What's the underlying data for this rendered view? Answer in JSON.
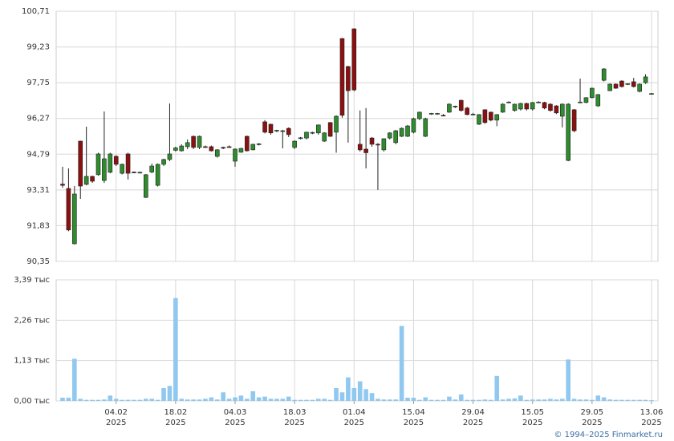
{
  "chart_data": {
    "type": "candlestick",
    "categories": [
      null,
      null,
      null,
      null,
      null,
      null,
      null,
      null,
      null,
      "04.02",
      null,
      null,
      null,
      null,
      null,
      null,
      null,
      null,
      null,
      "18.02",
      null,
      null,
      null,
      null,
      null,
      null,
      null,
      null,
      null,
      "04.03",
      null,
      null,
      null,
      null,
      null,
      null,
      null,
      null,
      null,
      "18.03",
      null,
      null,
      null,
      null,
      null,
      null,
      null,
      null,
      null,
      "01.04",
      null,
      null,
      null,
      null,
      null,
      null,
      null,
      null,
      null,
      "15.04",
      null,
      null,
      null,
      null,
      null,
      null,
      null,
      null,
      null,
      "29.04",
      null,
      null,
      null,
      null,
      null,
      null,
      null,
      null,
      null,
      "15.05",
      null,
      null,
      null,
      null,
      null,
      null,
      null,
      null,
      null,
      "29.05",
      null,
      null,
      null,
      null,
      null,
      null,
      null,
      null,
      null,
      "13.06"
    ],
    "year": "2025",
    "open": [
      93.55,
      93.37,
      91.08,
      95.33,
      93.54,
      93.87,
      93.94,
      93.7,
      94.04,
      94.7,
      94.0,
      94.8,
      94.05,
      94.02,
      93.0,
      94.05,
      93.5,
      94.37,
      94.57,
      94.95,
      94.93,
      95.1,
      95.53,
      95.07,
      95.1,
      95.1,
      94.7,
      95.07,
      95.1,
      94.5,
      94.87,
      95.53,
      94.97,
      95.2,
      96.13,
      96.03,
      95.76,
      95.75,
      95.86,
      95.07,
      95.45,
      95.46,
      95.67,
      95.67,
      95.33,
      96.1,
      95.7,
      99.58,
      98.42,
      99.98,
      95.2,
      95.0,
      95.46,
      95.2,
      94.97,
      95.46,
      95.27,
      95.53,
      95.53,
      95.7,
      96.26,
      95.53,
      96.46,
      96.46,
      96.4,
      96.53,
      96.76,
      97.02,
      96.7,
      96.43,
      96.03,
      96.63,
      96.53,
      96.2,
      96.53,
      96.93,
      96.6,
      96.66,
      96.89,
      96.66,
      96.93,
      96.93,
      96.86,
      96.79,
      96.36,
      94.53,
      96.63,
      96.93,
      96.93,
      97.13,
      96.79,
      97.85,
      97.42,
      97.69,
      97.82,
      97.69,
      97.79,
      97.39,
      97.75,
      97.29
    ],
    "high": [
      94.27,
      94.2,
      93.47,
      95.35,
      95.93,
      93.9,
      94.85,
      96.56,
      94.85,
      94.75,
      94.4,
      94.85,
      94.07,
      94.07,
      93.97,
      94.4,
      94.4,
      94.6,
      96.89,
      95.1,
      95.2,
      95.4,
      95.56,
      95.56,
      95.15,
      95.15,
      95.0,
      95.1,
      95.15,
      95.03,
      95.05,
      95.56,
      95.22,
      95.25,
      96.2,
      96.05,
      95.8,
      95.8,
      95.9,
      95.36,
      95.5,
      95.72,
      95.72,
      96.02,
      95.7,
      96.12,
      96.4,
      99.6,
      98.45,
      100.0,
      96.6,
      96.7,
      95.5,
      95.25,
      95.45,
      95.7,
      95.8,
      95.9,
      96.0,
      96.3,
      96.55,
      96.3,
      96.5,
      96.5,
      96.45,
      96.9,
      96.8,
      97.05,
      96.75,
      96.5,
      96.45,
      96.65,
      96.55,
      96.45,
      96.9,
      96.98,
      96.88,
      96.92,
      96.92,
      96.95,
      96.98,
      96.96,
      96.9,
      96.82,
      96.9,
      96.9,
      96.66,
      97.92,
      97.15,
      97.55,
      97.28,
      98.35,
      97.72,
      97.72,
      97.85,
      97.72,
      97.95,
      97.72,
      98.1,
      97.32
    ],
    "low": [
      93.4,
      91.6,
      91.05,
      92.94,
      93.5,
      93.6,
      93.9,
      93.6,
      94.0,
      94.3,
      93.95,
      93.74,
      94.0,
      94.0,
      92.98,
      94.0,
      93.45,
      94.3,
      94.5,
      94.9,
      94.9,
      95.0,
      95.0,
      95.0,
      95.05,
      94.9,
      94.65,
      95.0,
      95.05,
      94.27,
      94.85,
      94.9,
      94.95,
      95.15,
      95.65,
      95.6,
      95.7,
      95.03,
      95.5,
      95.0,
      95.4,
      95.4,
      95.62,
      95.6,
      95.3,
      95.5,
      94.85,
      96.3,
      95.27,
      97.4,
      94.9,
      94.2,
      95.1,
      93.31,
      94.9,
      95.4,
      95.2,
      95.5,
      95.5,
      95.65,
      96.2,
      95.5,
      96.42,
      96.42,
      96.36,
      96.5,
      96.7,
      96.55,
      96.4,
      96.4,
      96.0,
      96.05,
      96.15,
      95.95,
      96.5,
      96.9,
      96.55,
      96.6,
      96.6,
      96.6,
      96.9,
      96.65,
      96.55,
      96.45,
      95.9,
      94.5,
      95.7,
      96.9,
      96.9,
      97.1,
      96.75,
      97.8,
      97.4,
      97.5,
      97.55,
      97.65,
      97.55,
      97.35,
      97.7,
      97.26
    ],
    "close": [
      93.5,
      91.65,
      93.14,
      93.47,
      93.87,
      93.67,
      94.8,
      94.6,
      94.8,
      94.37,
      94.37,
      94.0,
      94.02,
      94.04,
      93.94,
      94.3,
      94.37,
      94.57,
      94.8,
      95.05,
      95.13,
      95.27,
      95.07,
      95.53,
      95.08,
      94.93,
      94.97,
      95.05,
      95.08,
      95.0,
      95.03,
      94.93,
      95.2,
      95.22,
      95.7,
      95.67,
      95.78,
      95.76,
      95.6,
      95.33,
      95.47,
      95.7,
      95.69,
      96.0,
      95.67,
      95.53,
      96.36,
      96.4,
      97.42,
      97.45,
      94.97,
      94.85,
      95.2,
      95.18,
      95.43,
      95.67,
      95.76,
      95.86,
      95.96,
      96.26,
      96.53,
      96.26,
      96.48,
      96.48,
      96.38,
      96.86,
      96.78,
      96.6,
      96.43,
      96.45,
      96.43,
      96.1,
      96.2,
      96.43,
      96.86,
      96.95,
      96.86,
      96.89,
      96.66,
      96.93,
      96.95,
      96.7,
      96.6,
      96.5,
      96.86,
      96.86,
      95.76,
      96.95,
      97.13,
      97.52,
      97.26,
      98.32,
      97.69,
      97.52,
      97.59,
      97.71,
      97.59,
      97.69,
      97.99,
      97.3
    ],
    "volume": [
      0.09,
      0.09,
      1.18,
      0.06,
      0.03,
      0.03,
      0.03,
      0.04,
      0.15,
      0.06,
      0.03,
      0.03,
      0.03,
      0.03,
      0.06,
      0.06,
      0.03,
      0.36,
      0.42,
      2.88,
      0.06,
      0.04,
      0.04,
      0.04,
      0.06,
      0.1,
      0.04,
      0.24,
      0.06,
      0.1,
      0.15,
      0.06,
      0.27,
      0.1,
      0.12,
      0.06,
      0.06,
      0.06,
      0.12,
      0.03,
      0.03,
      0.03,
      0.03,
      0.06,
      0.06,
      0.03,
      0.36,
      0.24,
      0.66,
      0.36,
      0.55,
      0.33,
      0.22,
      0.06,
      0.04,
      0.04,
      0.04,
      2.1,
      0.09,
      0.09,
      0.03,
      0.1,
      0.03,
      0.03,
      0.03,
      0.12,
      0.04,
      0.18,
      0.03,
      0.03,
      0.03,
      0.04,
      0.03,
      0.7,
      0.04,
      0.06,
      0.07,
      0.15,
      0.03,
      0.04,
      0.04,
      0.04,
      0.06,
      0.04,
      0.06,
      1.16,
      0.06,
      0.04,
      0.04,
      0.03,
      0.15,
      0.1,
      0.04,
      0.03,
      0.03,
      0.03,
      0.03,
      0.03,
      0.03,
      0.02
    ],
    "up_color": "#2e8b2e",
    "down_color": "#8b1010",
    "volume_color": "#90c8f0",
    "ylim": [
      90.35,
      100.71
    ],
    "yticks": [
      {
        "value": 90.35,
        "label": "90,35"
      },
      {
        "value": 91.83,
        "label": "91,83"
      },
      {
        "value": 93.31,
        "label": "93,31"
      },
      {
        "value": 94.79,
        "label": "94,79"
      },
      {
        "value": 96.27,
        "label": "96,27"
      },
      {
        "value": 97.75,
        "label": "97,75"
      },
      {
        "value": 99.23,
        "label": "99,23"
      },
      {
        "value": 100.71,
        "label": "100,71"
      }
    ],
    "volume_lim": [
      0,
      3.39
    ],
    "volume_ticks": [
      {
        "value": 0,
        "label": "0,00 тыс"
      },
      {
        "value": 1.13,
        "label": "1,13 тыс"
      },
      {
        "value": 2.26,
        "label": "2,26 тыс"
      },
      {
        "value": 3.39,
        "label": "3,39 тыс"
      }
    ],
    "grid": true,
    "footer": "© 1994–2025 Finmarket.ru"
  }
}
